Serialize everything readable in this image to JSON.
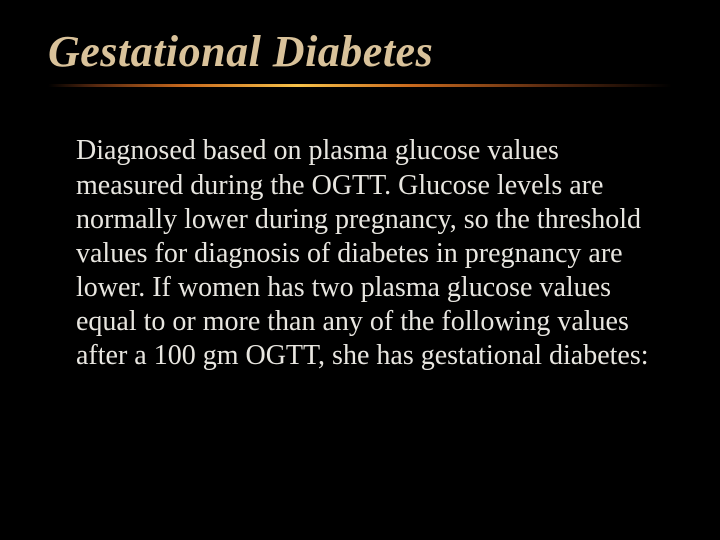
{
  "slide": {
    "title": "Gestational Diabetes",
    "body": "Diagnosed based on plasma glucose values measured during the OGTT. Glucose levels are normally lower during pregnancy, so the threshold values for diagnosis of diabetes in pregnancy are lower. If women has two plasma glucose values equal to or more than any of the following values after a 100 gm OGTT, she has gestational diabetes:",
    "colors": {
      "background": "#000000",
      "title_color": "#d9c29a",
      "body_color": "#e8e6e0",
      "underline_gradient": [
        "#5a2a10",
        "#c96a1e",
        "#f7c24a",
        "#c96a1e",
        "#5a2a10"
      ]
    },
    "typography": {
      "title_font": "Times New Roman",
      "title_style": "italic",
      "title_size_pt": 33,
      "body_font": "Times New Roman",
      "body_size_pt": 21
    }
  }
}
